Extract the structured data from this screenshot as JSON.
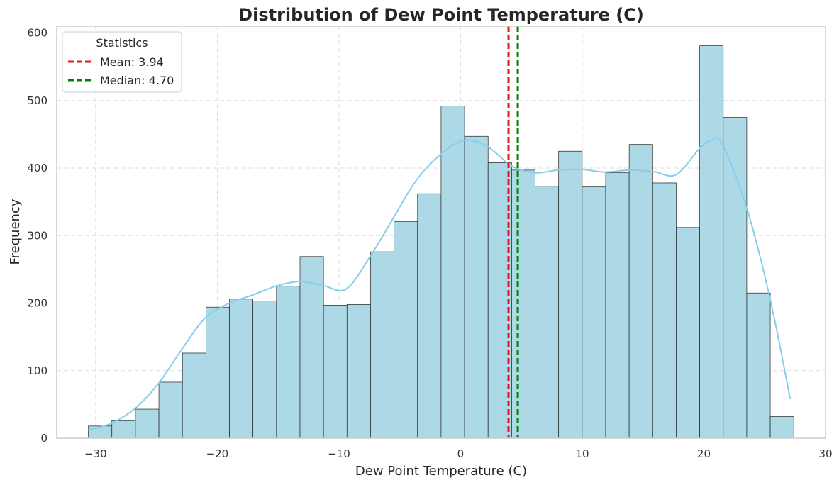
{
  "chart_data": {
    "type": "bar",
    "title": "Distribution of Dew Point Temperature (C)",
    "xlabel": "Dew Point Temperature (C)",
    "ylabel": "Frequency",
    "xlim": [
      -33.2,
      30
    ],
    "ylim": [
      0,
      610
    ],
    "x_ticks": [
      -30,
      -20,
      -10,
      0,
      10,
      20,
      30
    ],
    "x_tick_labels": [
      "−30",
      "−20",
      "−10",
      "0",
      "10",
      "20",
      "30"
    ],
    "y_ticks": [
      0,
      100,
      200,
      300,
      400,
      500,
      600
    ],
    "y_tick_labels": [
      "0",
      "100",
      "200",
      "300",
      "400",
      "500",
      "600"
    ],
    "grid": true,
    "bins": {
      "start": -30.6,
      "width": 1.933,
      "counts": [
        18,
        26,
        43,
        83,
        126,
        194,
        206,
        203,
        225,
        269,
        197,
        198,
        276,
        321,
        362,
        492,
        447,
        408,
        397,
        373,
        425,
        372,
        393,
        435,
        378,
        312,
        581,
        475,
        215,
        32
      ]
    },
    "kde": {
      "x": [
        -30.6,
        -28.7,
        -26.7,
        -24.8,
        -22.9,
        -21.0,
        -19.0,
        -17.1,
        -15.2,
        -13.2,
        -11.3,
        -9.4,
        -7.4,
        -5.5,
        -3.6,
        -1.6,
        0.3,
        2.2,
        4.2,
        6.1,
        8.0,
        10.0,
        11.9,
        13.8,
        15.8,
        17.7,
        19.6,
        20.6,
        21.5,
        23.5,
        25.4,
        27.1
      ],
      "y": [
        12,
        22,
        45,
        82,
        132,
        178,
        200,
        212,
        225,
        232,
        226,
        221,
        270,
        327,
        383,
        421,
        441,
        432,
        403,
        393,
        397,
        398,
        394,
        397,
        395,
        390,
        428,
        441,
        436,
        342,
        210,
        58
      ]
    },
    "reference_lines": [
      {
        "name": "Mean: 3.94",
        "value": 3.94,
        "color": "#e41a1c"
      },
      {
        "name": "Median: 4.70",
        "value": 4.7,
        "color": "#008000"
      }
    ],
    "legend": {
      "title": "Statistics",
      "position": "top-left"
    },
    "colors": {
      "bar_fill": "#add8e6",
      "bar_edge": "#222222",
      "kde_line": "#87ceeb",
      "grid": "#dddddd",
      "frame": "#cccccc"
    }
  }
}
